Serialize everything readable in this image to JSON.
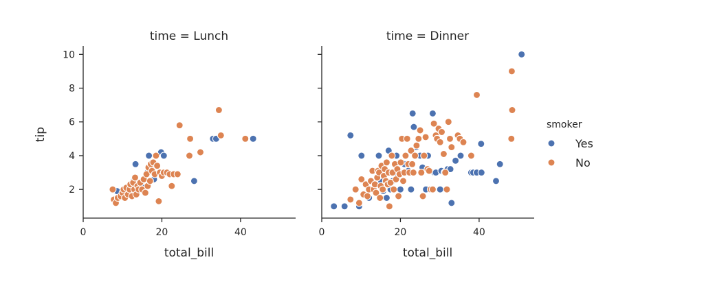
{
  "chart_data": [
    {
      "type": "scatter",
      "title": "time = Lunch",
      "xlabel": "total_bill",
      "ylabel": "tip",
      "xlim": [
        0,
        54
      ],
      "ylim": [
        0.3,
        10.5
      ],
      "xticks": [
        0,
        20,
        40
      ],
      "yticks": [
        2,
        4,
        6,
        8,
        10
      ],
      "grid": false,
      "series": [
        {
          "name": "Yes",
          "color": "#4c72b0",
          "points": [
            [
              8.6,
              1.9
            ],
            [
              9.6,
              1.6
            ],
            [
              11.0,
              1.6
            ],
            [
              12.0,
              1.8
            ],
            [
              12.8,
              2.5
            ],
            [
              13.3,
              3.5
            ],
            [
              14.2,
              2.3
            ],
            [
              15.5,
              2.1
            ],
            [
              16.3,
              3.0
            ],
            [
              16.7,
              4.0
            ],
            [
              17.3,
              3.3
            ],
            [
              18.0,
              2.6
            ],
            [
              19.8,
              4.2
            ],
            [
              20.5,
              4.0
            ],
            [
              19.5,
              3.0
            ],
            [
              28.2,
              2.5
            ],
            [
              33.0,
              5.0
            ],
            [
              33.8,
              5.0
            ],
            [
              43.2,
              5.0
            ]
          ]
        },
        {
          "name": "No",
          "color": "#dd8452",
          "points": [
            [
              7.5,
              2.0
            ],
            [
              7.8,
              1.4
            ],
            [
              8.3,
              1.2
            ],
            [
              8.8,
              1.5
            ],
            [
              9.5,
              1.6
            ],
            [
              10.0,
              1.8
            ],
            [
              10.3,
              2.0
            ],
            [
              10.6,
              1.5
            ],
            [
              11.0,
              2.1
            ],
            [
              11.4,
              1.7
            ],
            [
              11.8,
              2.0
            ],
            [
              12.0,
              2.3
            ],
            [
              12.4,
              1.6
            ],
            [
              12.7,
              2.4
            ],
            [
              13.0,
              2.0
            ],
            [
              13.2,
              2.7
            ],
            [
              13.5,
              1.7
            ],
            [
              13.8,
              2.2
            ],
            [
              14.1,
              2.0
            ],
            [
              14.5,
              2.4
            ],
            [
              15.0,
              2.0
            ],
            [
              15.4,
              2.6
            ],
            [
              15.8,
              1.8
            ],
            [
              16.1,
              2.9
            ],
            [
              16.4,
              2.2
            ],
            [
              16.6,
              3.3
            ],
            [
              17.0,
              2.5
            ],
            [
              17.2,
              3.5
            ],
            [
              17.5,
              3.1
            ],
            [
              17.8,
              3.6
            ],
            [
              18.2,
              2.9
            ],
            [
              18.5,
              4.0
            ],
            [
              18.8,
              3.4
            ],
            [
              19.2,
              1.3
            ],
            [
              19.5,
              3.0
            ],
            [
              20.0,
              2.8
            ],
            [
              20.5,
              3.0
            ],
            [
              21.3,
              3.0
            ],
            [
              22.0,
              2.9
            ],
            [
              22.5,
              2.2
            ],
            [
              23.0,
              2.9
            ],
            [
              24.0,
              2.9
            ],
            [
              24.5,
              5.8
            ],
            [
              27.0,
              4.0
            ],
            [
              27.2,
              5.0
            ],
            [
              29.8,
              4.2
            ],
            [
              34.5,
              6.7
            ],
            [
              35.0,
              5.2
            ],
            [
              41.2,
              5.0
            ]
          ]
        }
      ]
    },
    {
      "type": "scatter",
      "title": "time = Dinner",
      "xlabel": "total_bill",
      "ylabel": "",
      "xlim": [
        0,
        54
      ],
      "ylim": [
        0.3,
        10.5
      ],
      "xticks": [
        0,
        20,
        40
      ],
      "yticks": [
        2,
        4,
        6,
        8,
        10
      ],
      "grid": false,
      "series": [
        {
          "name": "Yes",
          "color": "#4c72b0",
          "points": [
            [
              3.1,
              1.0
            ],
            [
              5.8,
              1.0
            ],
            [
              7.3,
              5.2
            ],
            [
              9.5,
              1.0
            ],
            [
              10.1,
              4.0
            ],
            [
              12.0,
              1.5
            ],
            [
              13.1,
              2.0
            ],
            [
              14.5,
              4.0
            ],
            [
              15.1,
              2.5
            ],
            [
              15.6,
              1.9
            ],
            [
              16.0,
              3.0
            ],
            [
              16.5,
              1.5
            ],
            [
              17.0,
              4.3
            ],
            [
              17.5,
              2.0
            ],
            [
              18.0,
              2.5
            ],
            [
              18.5,
              3.0
            ],
            [
              19.0,
              4.0
            ],
            [
              20.0,
              2.0
            ],
            [
              20.7,
              3.0
            ],
            [
              21.0,
              3.5
            ],
            [
              22.0,
              3.1
            ],
            [
              22.7,
              2.0
            ],
            [
              23.1,
              6.5
            ],
            [
              23.4,
              5.7
            ],
            [
              24.0,
              4.5
            ],
            [
              25.0,
              4.0
            ],
            [
              25.6,
              3.3
            ],
            [
              26.5,
              2.0
            ],
            [
              27.0,
              4.0
            ],
            [
              28.2,
              6.5
            ],
            [
              28.6,
              3.0
            ],
            [
              29.0,
              3.0
            ],
            [
              30.1,
              2.0
            ],
            [
              30.4,
              3.1
            ],
            [
              31.2,
              3.0
            ],
            [
              32.0,
              3.2
            ],
            [
              32.7,
              3.2
            ],
            [
              33.0,
              1.2
            ],
            [
              34.0,
              3.7
            ],
            [
              35.3,
              4.0
            ],
            [
              38.0,
              3.0
            ],
            [
              38.5,
              3.0
            ],
            [
              39.4,
              3.0
            ],
            [
              40.6,
              3.0
            ],
            [
              40.5,
              4.7
            ],
            [
              44.3,
              2.5
            ],
            [
              45.3,
              3.5
            ],
            [
              50.8,
              10.0
            ]
          ]
        },
        {
          "name": "No",
          "color": "#dd8452",
          "points": [
            [
              7.3,
              1.4
            ],
            [
              8.6,
              2.0
            ],
            [
              9.5,
              1.2
            ],
            [
              10.1,
              2.6
            ],
            [
              10.6,
              1.7
            ],
            [
              11.2,
              2.3
            ],
            [
              11.6,
              1.6
            ],
            [
              12.0,
              2.0
            ],
            [
              12.5,
              2.5
            ],
            [
              12.9,
              3.1
            ],
            [
              13.2,
              2.0
            ],
            [
              13.5,
              2.3
            ],
            [
              13.8,
              1.8
            ],
            [
              14.1,
              2.7
            ],
            [
              14.3,
              3.1
            ],
            [
              14.6,
              3.0
            ],
            [
              14.8,
              1.5
            ],
            [
              15.0,
              2.2
            ],
            [
              15.2,
              3.4
            ],
            [
              15.5,
              2.0
            ],
            [
              15.8,
              2.8
            ],
            [
              16.0,
              3.2
            ],
            [
              16.3,
              2.5
            ],
            [
              16.5,
              3.6
            ],
            [
              16.8,
              2.3
            ],
            [
              17.0,
              3.0
            ],
            [
              17.2,
              1.0
            ],
            [
              17.5,
              2.4
            ],
            [
              17.8,
              4.0
            ],
            [
              18.0,
              3.0
            ],
            [
              18.3,
              2.0
            ],
            [
              18.6,
              3.5
            ],
            [
              18.9,
              2.6
            ],
            [
              19.2,
              3.2
            ],
            [
              19.5,
              1.6
            ],
            [
              19.8,
              2.9
            ],
            [
              20.1,
              3.6
            ],
            [
              20.4,
              5.0
            ],
            [
              20.7,
              2.5
            ],
            [
              21.0,
              3.0
            ],
            [
              21.3,
              4.0
            ],
            [
              21.7,
              5.0
            ],
            [
              22.0,
              3.5
            ],
            [
              22.3,
              3.0
            ],
            [
              22.7,
              4.3
            ],
            [
              23.0,
              3.5
            ],
            [
              23.3,
              3.0
            ],
            [
              23.7,
              4.0
            ],
            [
              24.1,
              4.6
            ],
            [
              24.6,
              5.0
            ],
            [
              25.0,
              5.5
            ],
            [
              25.3,
              3.0
            ],
            [
              25.7,
              1.6
            ],
            [
              26.0,
              4.0
            ],
            [
              26.4,
              5.1
            ],
            [
              26.9,
              3.2
            ],
            [
              27.3,
              3.1
            ],
            [
              27.7,
              2.0
            ],
            [
              28.2,
              2.0
            ],
            [
              28.5,
              5.9
            ],
            [
              29.0,
              5.2
            ],
            [
              29.3,
              5.0
            ],
            [
              29.7,
              5.6
            ],
            [
              30.1,
              4.8
            ],
            [
              30.5,
              5.4
            ],
            [
              31.0,
              4.1
            ],
            [
              31.4,
              3.0
            ],
            [
              31.8,
              2.0
            ],
            [
              32.2,
              6.0
            ],
            [
              32.6,
              5.0
            ],
            [
              33.0,
              4.5
            ],
            [
              34.6,
              5.2
            ],
            [
              35.1,
              5.0
            ],
            [
              36.0,
              4.8
            ],
            [
              38.0,
              4.0
            ],
            [
              39.4,
              7.6
            ],
            [
              48.2,
              5.0
            ],
            [
              48.3,
              9.0
            ],
            [
              48.4,
              6.7
            ]
          ]
        }
      ]
    }
  ],
  "legend": {
    "title": "smoker",
    "items": [
      {
        "label": "Yes",
        "color": "#4c72b0"
      },
      {
        "label": "No",
        "color": "#dd8452"
      }
    ]
  }
}
